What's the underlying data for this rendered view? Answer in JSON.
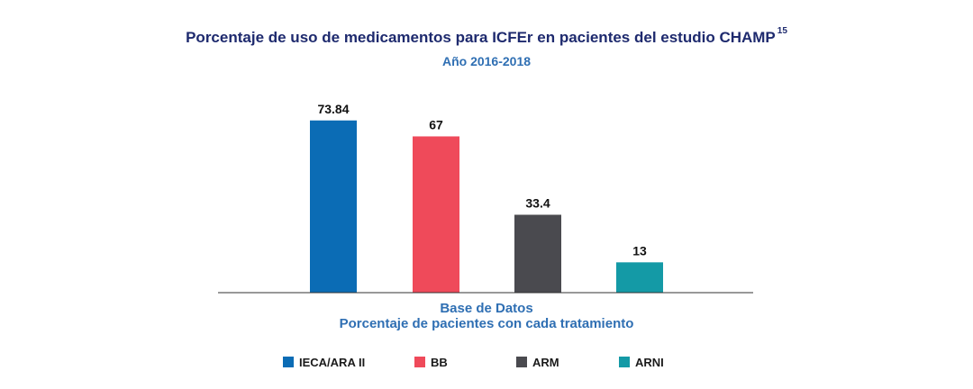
{
  "title": "Porcentaje de uso de medicamentos para ICFEr en pacientes del estudio CHAMP",
  "title_sup": "15",
  "subtitle": "Año 2016-2018",
  "xlabel_line1": "Base de Datos",
  "xlabel_line2": "Porcentaje de pacientes con cada tratamiento",
  "chart_data": {
    "type": "bar",
    "categories": [
      "IECA/ARA II",
      "BB",
      "ARM",
      "ARNI"
    ],
    "values": [
      73.84,
      67,
      33.4,
      13
    ],
    "value_labels": [
      "73.84",
      "67",
      "33.4",
      "13"
    ],
    "colors": [
      "#0b6cb5",
      "#ef4a5a",
      "#4a4a4f",
      "#149aa6"
    ],
    "ylim": [
      0,
      100
    ],
    "grid": false,
    "legend_position": "bottom"
  }
}
